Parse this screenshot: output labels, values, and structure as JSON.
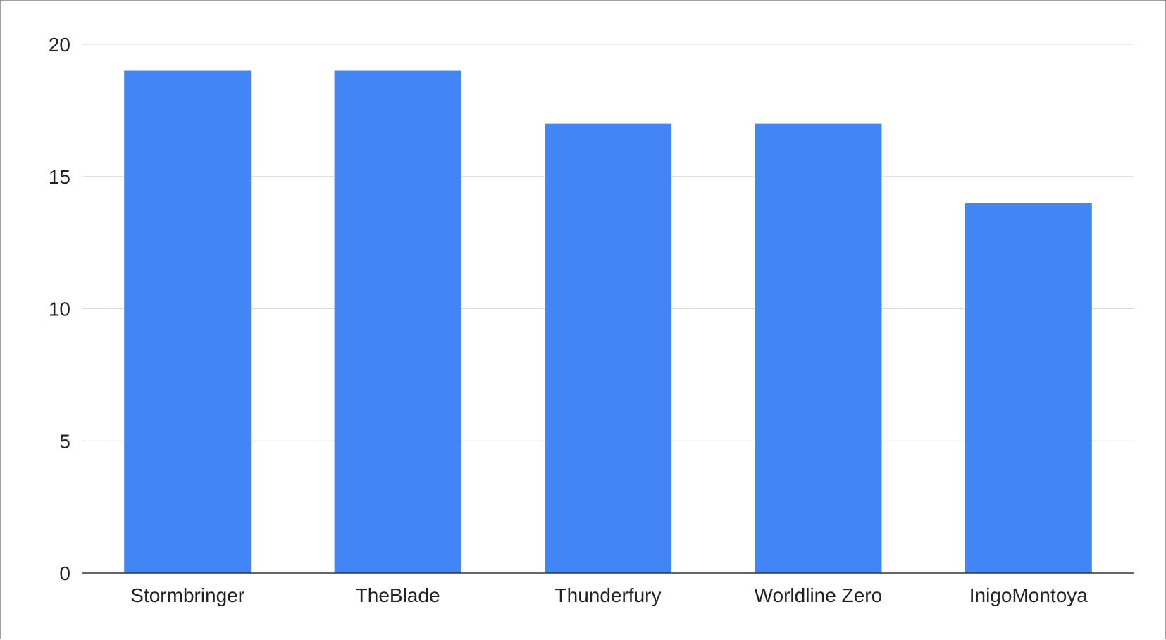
{
  "chart_data": {
    "type": "bar",
    "title": "",
    "xlabel": "",
    "ylabel": "",
    "categories": [
      "Stormbringer",
      "TheBlade",
      "Thunderfury",
      "Worldline Zero",
      "InigoMontoya"
    ],
    "values": [
      19,
      19,
      17,
      17,
      14
    ],
    "ylim": [
      0,
      20
    ],
    "yticks": [
      0,
      5,
      10,
      15,
      20
    ],
    "grid": true,
    "legend": "none",
    "bar_color": "#4285f4",
    "gridline_color": "#d9d9d9",
    "axis_color": "#333333"
  }
}
